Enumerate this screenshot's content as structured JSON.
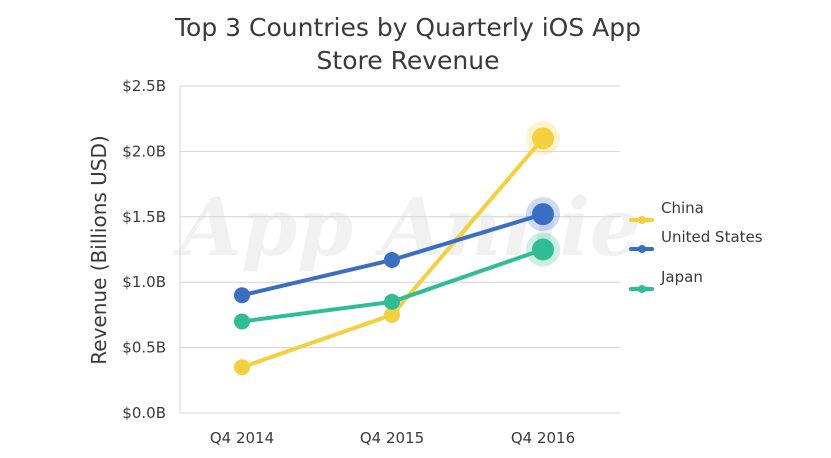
{
  "watermark": "App Annie",
  "chart_data": {
    "type": "line",
    "title_lines": [
      "Top 3 Countries by Quarterly iOS App",
      "Store Revenue"
    ],
    "xlabel": "",
    "ylabel": "Revenue (Billions USD)",
    "categories": [
      "Q4 2014",
      "Q4 2015",
      "Q4 2016"
    ],
    "ylim": [
      0,
      2.5
    ],
    "yticks": [
      0,
      0.5,
      1.0,
      1.5,
      2.0,
      2.5
    ],
    "ytick_labels": [
      "$0.0B",
      "$0.5B",
      "$1.0B",
      "$1.5B",
      "$2.0B",
      "$2.5B"
    ],
    "grid": true,
    "legend_position": "right",
    "series": [
      {
        "name": "China",
        "color": "#f4d03f",
        "values": [
          0.35,
          0.75,
          2.1
        ]
      },
      {
        "name": "United States",
        "color": "#3a6ec2",
        "values": [
          0.9,
          1.17,
          1.52
        ]
      },
      {
        "name": "Japan",
        "color": "#2ebd96",
        "values": [
          0.7,
          0.85,
          1.25
        ]
      }
    ]
  }
}
